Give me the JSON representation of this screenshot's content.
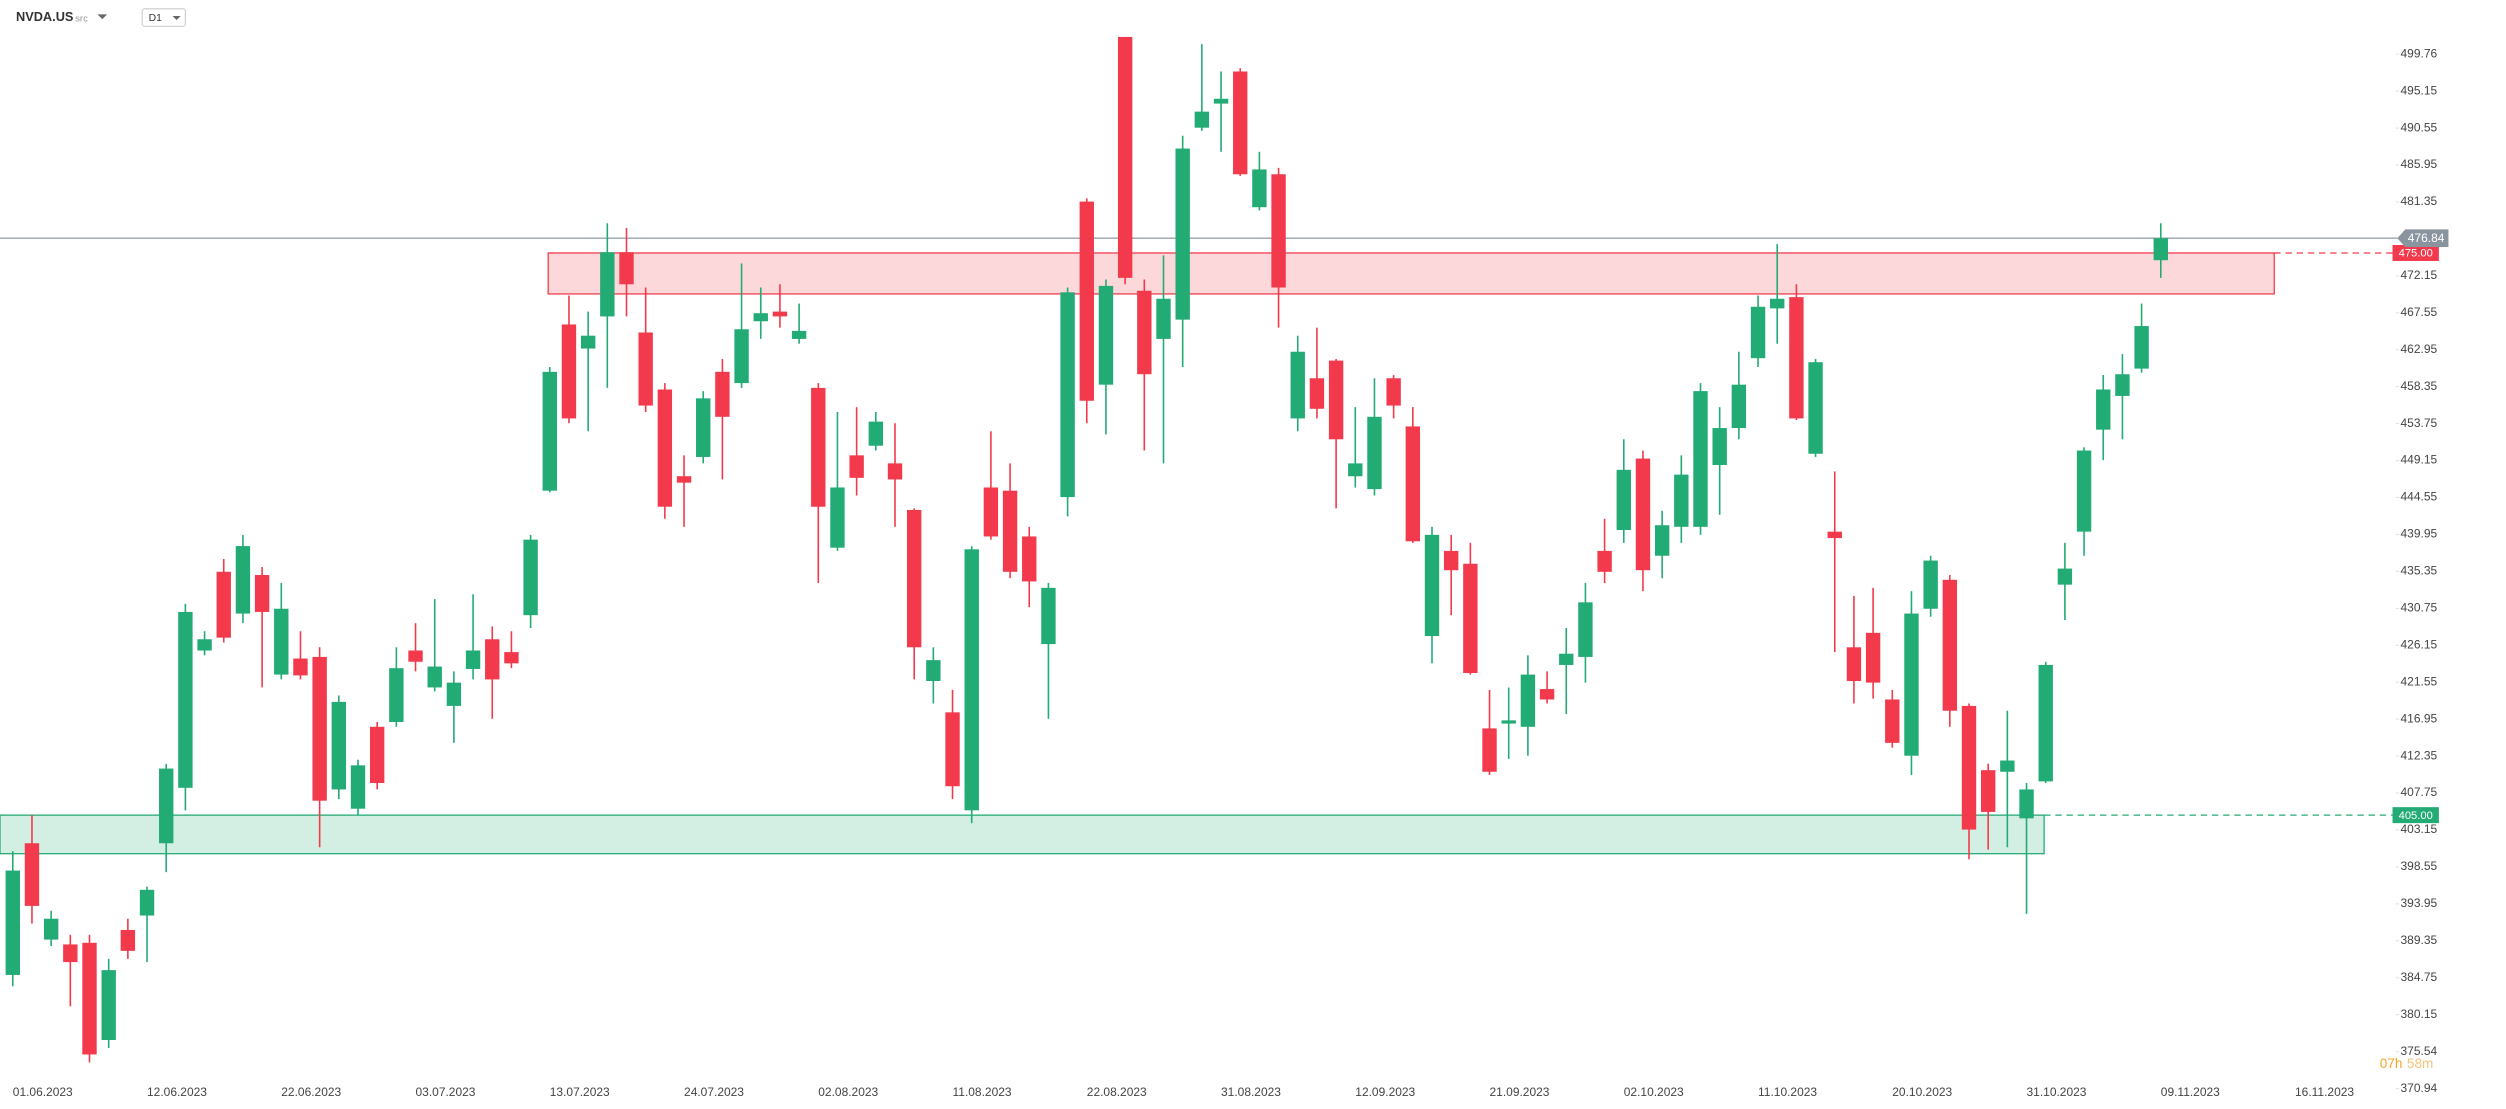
{
  "header": {
    "symbol": "NVDA.US",
    "source": "src",
    "timeframe": "D1"
  },
  "countdown": {
    "hours": "07h",
    "minutes": "58m"
  },
  "chart_data": {
    "type": "candlestick",
    "up_color": "#22ab74",
    "down_color": "#f23a4c",
    "ylim": [
      370,
      506.5
    ],
    "yticks": [
      499.76,
      495.15,
      490.55,
      485.95,
      481.35,
      472.15,
      467.55,
      462.95,
      458.35,
      453.75,
      449.15,
      444.55,
      439.95,
      435.35,
      430.75,
      426.15,
      421.55,
      416.95,
      412.35,
      407.75,
      403.15,
      398.55,
      393.95,
      389.35,
      384.75,
      380.15,
      375.54,
      370.94
    ],
    "categories": [
      "01.06.2023",
      null,
      null,
      null,
      null,
      null,
      null,
      "12.06.2023",
      null,
      null,
      null,
      null,
      null,
      null,
      "22.06.2023",
      null,
      null,
      null,
      null,
      null,
      null,
      "03.07.2023",
      null,
      null,
      null,
      null,
      null,
      null,
      "13.07.2023",
      null,
      null,
      null,
      null,
      null,
      null,
      "24.07.2023",
      null,
      null,
      null,
      null,
      null,
      null,
      "02.08.2023",
      null,
      null,
      null,
      null,
      null,
      null,
      "11.08.2023",
      null,
      null,
      null,
      null,
      null,
      null,
      "22.08.2023",
      null,
      null,
      null,
      null,
      null,
      null,
      "31.08.2023",
      null,
      null,
      null,
      null,
      null,
      null,
      "12.09.2023",
      null,
      null,
      null,
      null,
      null,
      null,
      "21.09.2023",
      null,
      null,
      null,
      null,
      null,
      null,
      "02.10.2023",
      null,
      null,
      null,
      null,
      null,
      null,
      "11.10.2023",
      null,
      null,
      null,
      null,
      null,
      null,
      "20.10.2023",
      null,
      null,
      null,
      null,
      null,
      null,
      "31.10.2023",
      null,
      null,
      null,
      null,
      null,
      null,
      "09.11.2023",
      null,
      null,
      null,
      null,
      null,
      null,
      "16.11.2023"
    ],
    "open": [
      385.1,
      401.5,
      389.5,
      388.9,
      389.1,
      377.0,
      390.7,
      392.5,
      401.5,
      408.4,
      425.5,
      435.3,
      430.1,
      434.9,
      422.5,
      424.5,
      424.7,
      408.2,
      405.8,
      416.0,
      416.6,
      425.5,
      420.9,
      418.6,
      423.2,
      426.9,
      425.3,
      429.9,
      445.4,
      466.1,
      463.1,
      467.1,
      475.1,
      465.1,
      458.0,
      447.2,
      449.6,
      460.2,
      458.8,
      466.5,
      467.7,
      464.3,
      458.2,
      438.3,
      449.8,
      451.0,
      448.8,
      443.0,
      421.7,
      417.8,
      405.6,
      445.8,
      445.4,
      439.7,
      426.3,
      444.6,
      481.4,
      458.6,
      501.9,
      470.3,
      464.3,
      466.7,
      490.6,
      493.6,
      497.6,
      480.7,
      484.8,
      454.4,
      459.4,
      461.6,
      447.2,
      445.6,
      459.4,
      453.4,
      427.3,
      437.9,
      436.3,
      415.8,
      416.4,
      416.0,
      420.7,
      423.7,
      424.7,
      437.9,
      440.5,
      449.4,
      437.3,
      440.9,
      440.9,
      448.6,
      453.2,
      461.9,
      468.1,
      469.5,
      450.0,
      440.3,
      425.9,
      427.7,
      419.4,
      412.4,
      430.7,
      434.3,
      418.6,
      410.6,
      410.4,
      404.6,
      409.2,
      433.7,
      440.3,
      453.0,
      457.2,
      460.6,
      474.1,
      null,
      null,
      null,
      null,
      null,
      null,
      null
    ],
    "high": [
      400.5,
      405.0,
      393.1,
      390.1,
      390.1,
      387.1,
      392.1,
      396.1,
      411.4,
      431.3,
      427.9,
      436.9,
      439.9,
      435.9,
      433.9,
      427.9,
      425.9,
      419.9,
      411.9,
      416.6,
      425.9,
      428.9,
      431.9,
      422.9,
      432.5,
      428.5,
      427.9,
      439.9,
      460.8,
      469.7,
      467.7,
      478.7,
      478.1,
      470.7,
      458.8,
      449.8,
      457.8,
      461.8,
      473.7,
      470.7,
      471.1,
      468.7,
      458.8,
      455.2,
      455.8,
      455.2,
      453.8,
      443.2,
      425.9,
      420.6,
      438.5,
      452.8,
      448.8,
      440.9,
      433.9,
      470.7,
      481.8,
      471.7,
      501.9,
      471.7,
      474.7,
      489.6,
      501.0,
      497.6,
      498.0,
      487.6,
      485.6,
      464.7,
      465.7,
      461.8,
      455.8,
      459.4,
      459.8,
      455.8,
      440.9,
      439.9,
      438.9,
      420.6,
      420.9,
      424.9,
      422.9,
      428.3,
      433.9,
      441.9,
      451.8,
      450.4,
      442.9,
      449.8,
      458.8,
      455.8,
      462.7,
      469.7,
      476.1,
      471.1,
      461.8,
      447.8,
      432.3,
      433.3,
      420.6,
      432.9,
      437.3,
      434.9,
      418.9,
      411.4,
      418.0,
      409.0,
      424.1,
      438.9,
      450.8,
      459.8,
      462.4,
      468.7,
      478.7,
      null,
      null,
      null,
      null,
      null,
      null,
      null
    ],
    "low": [
      383.7,
      391.5,
      388.7,
      381.2,
      374.2,
      376.0,
      387.1,
      386.7,
      397.9,
      405.6,
      424.9,
      426.5,
      428.9,
      420.9,
      421.9,
      421.9,
      401.0,
      407.0,
      405.0,
      408.2,
      416.0,
      422.9,
      420.4,
      414.0,
      421.9,
      417.0,
      423.3,
      428.3,
      445.2,
      453.8,
      452.8,
      458.2,
      467.1,
      455.2,
      441.9,
      440.9,
      448.8,
      446.8,
      458.2,
      464.3,
      465.7,
      463.7,
      433.9,
      437.9,
      444.8,
      450.4,
      440.9,
      421.9,
      418.9,
      407.0,
      404.0,
      439.3,
      434.5,
      430.9,
      417.0,
      442.2,
      453.8,
      452.4,
      471.1,
      450.4,
      448.8,
      460.8,
      490.2,
      487.6,
      484.6,
      480.3,
      465.7,
      452.8,
      454.4,
      443.2,
      445.8,
      444.8,
      454.4,
      438.9,
      423.9,
      429.9,
      422.5,
      410.0,
      412.0,
      412.4,
      418.9,
      417.6,
      421.5,
      433.9,
      438.9,
      432.9,
      434.5,
      438.9,
      439.9,
      442.4,
      451.8,
      460.8,
      463.7,
      454.2,
      449.6,
      425.3,
      418.9,
      419.5,
      413.4,
      410.0,
      429.7,
      416.0,
      399.5,
      400.7,
      401.0,
      392.7,
      409.0,
      429.3,
      437.3,
      449.2,
      451.8,
      460.1,
      471.9,
      null,
      null,
      null,
      null,
      null,
      null,
      null
    ],
    "close": [
      398.1,
      393.7,
      392.1,
      386.7,
      375.2,
      385.7,
      388.1,
      395.7,
      410.8,
      430.3,
      426.9,
      427.1,
      438.5,
      430.3,
      430.7,
      422.4,
      406.8,
      419.1,
      411.2,
      409.0,
      423.3,
      424.1,
      423.5,
      421.5,
      425.5,
      421.9,
      423.9,
      439.3,
      460.2,
      454.4,
      464.7,
      475.1,
      471.1,
      456.0,
      443.4,
      446.4,
      456.9,
      454.6,
      465.5,
      467.5,
      467.1,
      465.3,
      443.4,
      445.8,
      447.0,
      454.0,
      446.8,
      425.9,
      424.3,
      408.6,
      438.1,
      439.7,
      435.3,
      434.1,
      433.3,
      470.1,
      456.6,
      470.9,
      471.9,
      459.9,
      469.3,
      488.0,
      492.6,
      494.2,
      484.8,
      485.4,
      470.7,
      462.7,
      455.6,
      451.8,
      448.8,
      454.6,
      456.0,
      439.1,
      439.9,
      435.5,
      422.7,
      410.4,
      416.8,
      422.5,
      419.4,
      425.1,
      431.5,
      435.3,
      448.0,
      435.5,
      441.1,
      447.4,
      457.8,
      453.2,
      458.6,
      468.3,
      469.3,
      454.4,
      461.4,
      439.5,
      421.7,
      421.5,
      414.0,
      430.1,
      436.7,
      418.0,
      403.2,
      405.4,
      411.8,
      408.2,
      423.7,
      435.7,
      450.4,
      458.0,
      459.9,
      465.9,
      476.84,
      null,
      null,
      null,
      null,
      null,
      null,
      null
    ],
    "last_price": 476.84,
    "zones": [
      {
        "high": 475,
        "low": 469.9,
        "value_label": "475.00",
        "color": "#f23a4c"
      },
      {
        "high": 405,
        "low": 400.2,
        "value_label": "405.00",
        "color": "#22ab74"
      }
    ]
  }
}
